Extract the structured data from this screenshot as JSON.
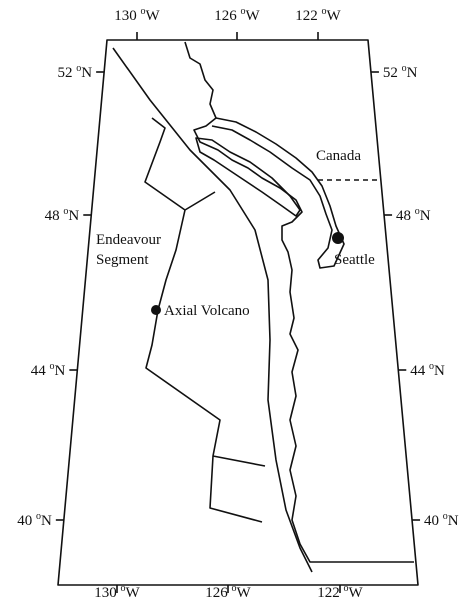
{
  "map": {
    "top_ticks": [
      {
        "deg": "130",
        "sup": "o",
        "dir": "W"
      },
      {
        "deg": "126",
        "sup": "o",
        "dir": "W"
      },
      {
        "deg": "122",
        "sup": "o",
        "dir": "W"
      }
    ],
    "bottom_ticks": [
      {
        "deg": "130",
        "sup": "o",
        "dir": "W"
      },
      {
        "deg": "126",
        "sup": "o",
        "dir": "W"
      },
      {
        "deg": "122",
        "sup": "o",
        "dir": "W"
      }
    ],
    "left_ticks": [
      {
        "deg": "52",
        "sup": "o",
        "dir": "N"
      },
      {
        "deg": "48",
        "sup": "o",
        "dir": "N"
      },
      {
        "deg": "44",
        "sup": "o",
        "dir": "N"
      },
      {
        "deg": "40",
        "sup": "o",
        "dir": "N"
      }
    ],
    "right_ticks": [
      {
        "deg": "52",
        "sup": "o",
        "dir": "N"
      },
      {
        "deg": "48",
        "sup": "o",
        "dir": "N"
      },
      {
        "deg": "44",
        "sup": "o",
        "dir": "N"
      },
      {
        "deg": "40",
        "sup": "o",
        "dir": "N"
      }
    ],
    "places": {
      "canada": "Canada",
      "seattle": "Seattle",
      "axial": "Axial Volcano",
      "endeavour": [
        "Endeavour",
        "Segment"
      ]
    }
  }
}
